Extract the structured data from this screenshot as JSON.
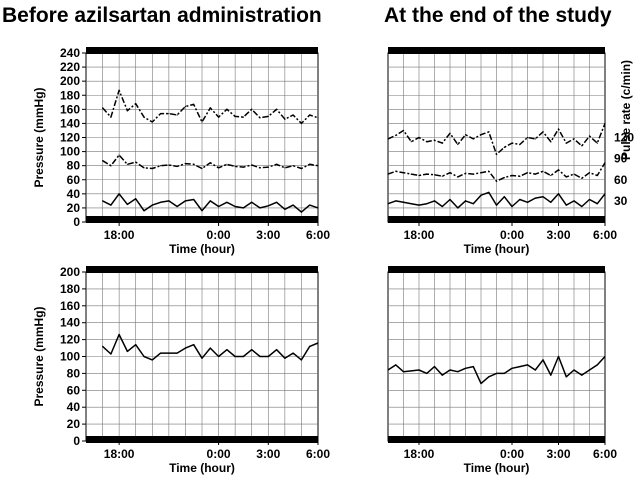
{
  "panel_titles": {
    "left": "Before azilsartan administration",
    "right": "At the end of the study"
  },
  "chart_data": [
    {
      "type": "line",
      "panel": "before-top",
      "xlabel": "Time (hour)",
      "ylabel": "Pressure (mmHg)",
      "x_ticks": [
        "18:00",
        "0:00",
        "3:00",
        "6:00"
      ],
      "x_range_hours": [
        -8,
        6
      ],
      "ylim": [
        0,
        240
      ],
      "y_ticks": [
        0,
        20,
        40,
        60,
        80,
        100,
        120,
        140,
        160,
        180,
        200,
        220,
        240
      ],
      "grid": true,
      "series": [
        {
          "style": "dash-dot",
          "x": [
            -7.0,
            -6.5,
            -6.0,
            -5.5,
            -5.0,
            -4.5,
            -4.0,
            -3.5,
            -3.0,
            -2.5,
            -2.0,
            -1.5,
            -1.0,
            -0.5,
            0.0,
            0.5,
            1.0,
            1.5,
            2.0,
            2.5,
            3.0,
            3.5,
            4.0,
            4.5,
            5.0,
            5.5,
            6.0
          ],
          "values": [
            162,
            149,
            187,
            158,
            168,
            149,
            142,
            154,
            154,
            152,
            164,
            167,
            142,
            162,
            149,
            160,
            150,
            149,
            160,
            148,
            150,
            160,
            146,
            152,
            140,
            152,
            148
          ]
        },
        {
          "style": "dash-dot",
          "x": [
            -7.0,
            -6.5,
            -6.0,
            -5.5,
            -5.0,
            -4.5,
            -4.0,
            -3.5,
            -3.0,
            -2.5,
            -2.0,
            -1.5,
            -1.0,
            -0.5,
            0.0,
            0.5,
            1.0,
            1.5,
            2.0,
            2.5,
            3.0,
            3.5,
            4.0,
            4.5,
            5.0,
            5.5,
            6.0
          ],
          "values": [
            87,
            80,
            95,
            82,
            85,
            77,
            76,
            80,
            81,
            79,
            83,
            82,
            76,
            84,
            77,
            82,
            79,
            78,
            81,
            77,
            78,
            82,
            77,
            80,
            76,
            82,
            80
          ]
        },
        {
          "style": "solid",
          "x": [
            -7.0,
            -6.5,
            -6.0,
            -5.5,
            -5.0,
            -4.5,
            -4.0,
            -3.5,
            -3.0,
            -2.5,
            -2.0,
            -1.5,
            -1.0,
            -0.5,
            0.0,
            0.5,
            1.0,
            1.5,
            2.0,
            2.5,
            3.0,
            3.5,
            4.0,
            4.5,
            5.0,
            5.5,
            6.0
          ],
          "values": [
            30,
            24,
            40,
            25,
            33,
            16,
            24,
            28,
            30,
            22,
            30,
            32,
            16,
            30,
            22,
            28,
            22,
            20,
            28,
            20,
            23,
            28,
            18,
            24,
            14,
            24,
            20
          ]
        }
      ]
    },
    {
      "type": "line",
      "panel": "after-top",
      "xlabel": "Time (hour)",
      "ylabel_right": "Pulse rate (c/min)",
      "x_ticks": [
        "18:00",
        "0:00",
        "3:00",
        "6:00"
      ],
      "x_range_hours": [
        -8,
        6
      ],
      "ylim": [
        0,
        240
      ],
      "right_y_ticks": [
        30,
        60,
        90,
        120
      ],
      "grid": true,
      "series": [
        {
          "style": "dash-dot",
          "x": [
            -8.0,
            -7.5,
            -7.0,
            -6.5,
            -6.0,
            -5.5,
            -5.0,
            -4.5,
            -4.0,
            -3.5,
            -3.0,
            -2.5,
            -2.0,
            -1.5,
            -1.0,
            -0.5,
            0.0,
            0.5,
            1.0,
            1.5,
            2.0,
            2.5,
            3.0,
            3.5,
            4.0,
            4.5,
            5.0,
            5.5,
            6.0
          ],
          "values": [
            118,
            123,
            130,
            114,
            120,
            114,
            116,
            112,
            126,
            110,
            124,
            118,
            124,
            128,
            96,
            106,
            112,
            110,
            120,
            118,
            128,
            114,
            132,
            112,
            118,
            108,
            122,
            112,
            140
          ]
        },
        {
          "style": "dash-dot",
          "x": [
            -8.0,
            -7.5,
            -7.0,
            -6.5,
            -6.0,
            -5.5,
            -5.0,
            -4.5,
            -4.0,
            -3.5,
            -3.0,
            -2.5,
            -2.0,
            -1.5,
            -1.0,
            -0.5,
            0.0,
            0.5,
            1.0,
            1.5,
            2.0,
            2.5,
            3.0,
            3.5,
            4.0,
            4.5,
            5.0,
            5.5,
            6.0
          ],
          "values": [
            68,
            72,
            70,
            68,
            66,
            68,
            67,
            65,
            70,
            64,
            69,
            68,
            70,
            72,
            58,
            63,
            66,
            65,
            70,
            68,
            72,
            66,
            74,
            64,
            68,
            62,
            70,
            66,
            84
          ]
        },
        {
          "style": "solid",
          "x": [
            -8.0,
            -7.5,
            -7.0,
            -6.5,
            -6.0,
            -5.5,
            -5.0,
            -4.5,
            -4.0,
            -3.5,
            -3.0,
            -2.5,
            -2.0,
            -1.5,
            -1.0,
            -0.5,
            0.0,
            0.5,
            1.0,
            1.5,
            2.0,
            2.5,
            3.0,
            3.5,
            4.0,
            4.5,
            5.0,
            5.5,
            6.0
          ],
          "values": [
            26,
            30,
            28,
            26,
            24,
            26,
            30,
            22,
            32,
            20,
            30,
            26,
            38,
            42,
            24,
            36,
            22,
            32,
            28,
            34,
            36,
            28,
            40,
            24,
            30,
            22,
            32,
            26,
            40
          ]
        }
      ]
    },
    {
      "type": "line",
      "panel": "before-bottom",
      "xlabel": "Time (hour)",
      "ylabel": "Pressure (mmHg)",
      "x_ticks": [
        "18:00",
        "0:00",
        "3:00",
        "6:00"
      ],
      "x_range_hours": [
        -8,
        6
      ],
      "ylim": [
        0,
        200
      ],
      "y_ticks": [
        0,
        20,
        40,
        60,
        80,
        100,
        120,
        140,
        160,
        180,
        200
      ],
      "grid": true,
      "series": [
        {
          "style": "solid",
          "x": [
            -7.0,
            -6.5,
            -6.0,
            -5.5,
            -5.0,
            -4.5,
            -4.0,
            -3.5,
            -3.0,
            -2.5,
            -2.0,
            -1.5,
            -1.0,
            -0.5,
            0.0,
            0.5,
            1.0,
            1.5,
            2.0,
            2.5,
            3.0,
            3.5,
            4.0,
            4.5,
            5.0,
            5.5,
            6.0
          ],
          "values": [
            112,
            103,
            126,
            106,
            114,
            100,
            96,
            104,
            104,
            104,
            110,
            114,
            98,
            110,
            100,
            108,
            100,
            100,
            108,
            100,
            100,
            108,
            98,
            104,
            96,
            112,
            116
          ]
        }
      ]
    },
    {
      "type": "line",
      "panel": "after-bottom",
      "xlabel": "Time (hour)",
      "x_ticks": [
        "18:00",
        "0:00",
        "3:00",
        "6:00"
      ],
      "x_range_hours": [
        -8,
        6
      ],
      "ylim": [
        0,
        200
      ],
      "grid": true,
      "series": [
        {
          "style": "solid",
          "x": [
            -8.0,
            -7.5,
            -7.0,
            -6.5,
            -6.0,
            -5.5,
            -5.0,
            -4.5,
            -4.0,
            -3.5,
            -3.0,
            -2.5,
            -2.0,
            -1.5,
            -1.0,
            -0.5,
            0.0,
            0.5,
            1.0,
            1.5,
            2.0,
            2.5,
            3.0,
            3.5,
            4.0,
            4.5,
            5.0,
            5.5,
            6.0
          ],
          "values": [
            84,
            90,
            82,
            83,
            84,
            80,
            88,
            78,
            84,
            82,
            86,
            88,
            68,
            76,
            80,
            80,
            86,
            88,
            90,
            84,
            96,
            78,
            100,
            76,
            84,
            78,
            84,
            90,
            100
          ]
        }
      ]
    }
  ]
}
